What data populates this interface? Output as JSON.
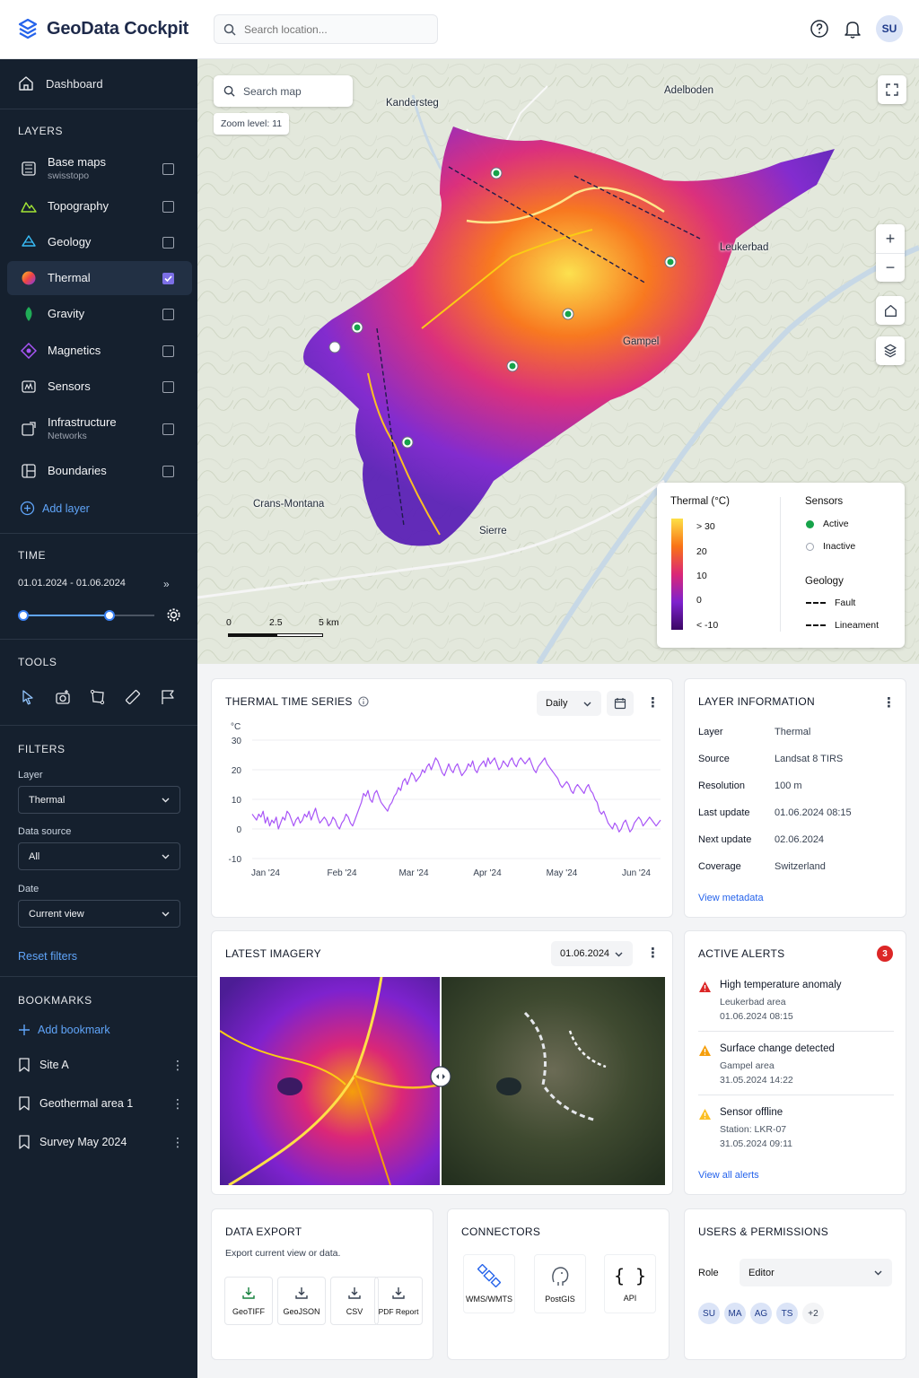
{
  "app": {
    "title": "GeoData Cockpit",
    "search_placeholder": "Search location...",
    "user_initials": "SU"
  },
  "sidebar": {
    "dashboard": "Dashboard",
    "layers_title": "LAYERS",
    "layers": [
      {
        "label": "Base maps",
        "sub": "swisstopo",
        "checked": false
      },
      {
        "label": "Topography",
        "checked": false
      },
      {
        "label": "Geology",
        "checked": false
      },
      {
        "label": "Thermal",
        "checked": true
      },
      {
        "label": "Gravity",
        "checked": false
      },
      {
        "label": "Magnetics",
        "checked": false
      },
      {
        "label": "Sensors",
        "checked": false
      },
      {
        "label": "Infrastructure",
        "sub": "Networks",
        "checked": false
      },
      {
        "label": "Boundaries",
        "checked": false
      }
    ],
    "add_layer": "Add layer",
    "time_title": "TIME",
    "time_range": "01.01.2024 - 01.06.2024",
    "time_slider": {
      "start": 0,
      "end": 0.66
    },
    "tools_title": "TOOLS",
    "filters_title": "FILTERS",
    "filters": [
      {
        "label": "Layer",
        "value": "Thermal"
      },
      {
        "label": "Data source",
        "value": "All"
      },
      {
        "label": "Date",
        "value": "Current view"
      }
    ],
    "reset_filters": "Reset filters",
    "bookmarks_title": "BOOKMARKS",
    "add_bookmark": "Add bookmark",
    "bookmarks": [
      "Site A",
      "Geothermal area 1",
      "Survey May 2024"
    ]
  },
  "map": {
    "search_placeholder": "Search map",
    "zoom_text": "Zoom level: 11",
    "places": [
      "Kandersteg",
      "Adelboden",
      "Leukerbad",
      "Gampel",
      "Crans-Montana",
      "Sierre"
    ],
    "scale": [
      "0",
      "2.5",
      "5 km"
    ],
    "legend": {
      "thermal_title": "Thermal (°C)",
      "ticks": [
        "> 30",
        "20",
        "10",
        "0",
        "< -10"
      ],
      "sensors_title": "Sensors",
      "active": "Active",
      "inactive": "Inactive",
      "geology_title": "Geology",
      "fault": "Fault",
      "lineament": "Lineament"
    }
  },
  "timeseries": {
    "title": "THERMAL TIME SERIES",
    "interval": "Daily"
  },
  "chart_data": {
    "type": "line",
    "title": "THERMAL TIME SERIES",
    "ylabel": "°C",
    "ylim": [
      -10,
      30
    ],
    "yticks": [
      "30",
      "20",
      "10",
      "0",
      "-10"
    ],
    "xticks": [
      "Jan '24",
      "Feb '24",
      "Mar '24",
      "Apr '24",
      "May '24",
      "Jun '24"
    ],
    "grid": true,
    "series": [
      {
        "values": [
          5,
          4,
          3,
          5,
          4,
          6,
          2,
          4,
          1,
          3,
          2,
          4,
          0,
          2,
          4,
          3,
          6,
          5,
          3,
          1,
          3,
          4,
          2,
          3,
          5,
          4,
          6,
          3,
          5,
          7,
          4,
          2,
          3,
          4,
          3,
          1,
          2,
          4,
          3,
          1,
          0,
          2,
          3,
          5,
          4,
          2,
          1,
          3,
          5,
          7,
          9,
          12,
          11,
          13,
          10,
          9,
          12,
          13,
          11,
          9,
          8,
          7,
          6,
          8,
          9,
          11,
          12,
          14,
          13,
          16,
          17,
          15,
          17,
          19,
          18,
          16,
          17,
          18,
          20,
          19,
          21,
          22,
          20,
          22,
          24,
          23,
          21,
          19,
          18,
          20,
          22,
          20,
          19,
          21,
          22,
          20,
          18,
          19,
          20,
          22,
          21,
          23,
          20,
          19,
          21,
          22,
          23,
          21,
          24,
          22,
          23,
          24,
          22,
          20,
          21,
          23,
          22,
          21,
          23,
          24,
          22,
          21,
          23,
          24,
          23,
          22,
          23,
          24,
          22,
          20,
          19,
          21,
          22,
          23,
          24,
          22,
          21,
          20,
          19,
          18,
          17,
          15,
          14,
          15,
          16,
          15,
          13,
          12,
          14,
          15,
          14,
          13,
          12,
          14,
          15,
          13,
          12,
          10,
          9,
          6,
          5,
          6,
          4,
          2,
          1,
          0,
          2,
          1,
          -1,
          0,
          2,
          3,
          1,
          -1,
          0,
          2,
          3,
          4,
          3,
          1,
          2,
          3,
          4,
          3,
          2,
          1,
          2,
          3
        ]
      }
    ]
  },
  "layer_info": {
    "title": "LAYER INFORMATION",
    "rows": [
      {
        "k": "Layer",
        "v": "Thermal"
      },
      {
        "k": "Source",
        "v": "Landsat 8 TIRS"
      },
      {
        "k": "Resolution",
        "v": "100 m"
      },
      {
        "k": "Last update",
        "v": "01.06.2024 08:15"
      },
      {
        "k": "Next update",
        "v": "02.06.2024"
      },
      {
        "k": "Coverage",
        "v": "Switzerland"
      }
    ],
    "link": "View metadata"
  },
  "imagery": {
    "title": "LATEST IMAGERY",
    "date": "01.06.2024"
  },
  "alerts": {
    "title": "ACTIVE ALERTS",
    "count": "3",
    "items": [
      {
        "title": "High temperature anomaly",
        "line1": "Leukerbad area",
        "line2": "01.06.2024 08:15",
        "color": "#dc2626"
      },
      {
        "title": "Surface change detected",
        "line1": "Gampel area",
        "line2": "31.05.2024 14:22",
        "color": "#f59e0b"
      },
      {
        "title": "Sensor offline",
        "line1": "Station: LKR-07",
        "line2": "31.05.2024 09:11",
        "color": "#fbbf24"
      }
    ],
    "link": "View all alerts"
  },
  "export": {
    "title": "DATA EXPORT",
    "desc": "Export current view or data.",
    "buttons": [
      "GeoTIFF",
      "GeoJSON",
      "CSV",
      "PDF Report"
    ]
  },
  "connectors": {
    "title": "CONNECTORS",
    "items": [
      "WMS/WMTS",
      "PostGIS",
      "API"
    ]
  },
  "users": {
    "title": "USERS & PERMISSIONS",
    "role_label": "Role",
    "role_value": "Editor",
    "avatars": [
      "SU",
      "MA",
      "AG",
      "TS"
    ],
    "more": "+2"
  }
}
